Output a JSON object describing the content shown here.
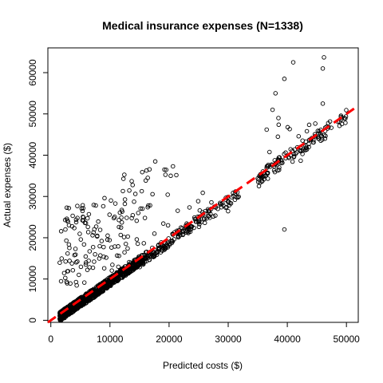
{
  "chart_data": {
    "type": "scatter",
    "title": "Medical insurance expenses (N=1338)",
    "xlabel": "Predicted costs ($)",
    "ylabel": "Actual expenses ($)",
    "xlim": [
      -500,
      52000
    ],
    "ylim": [
      -500,
      66000
    ],
    "xticks": [
      0,
      10000,
      20000,
      30000,
      40000,
      50000
    ],
    "yticks": [
      0,
      10000,
      20000,
      30000,
      40000,
      50000,
      60000
    ],
    "grid": false,
    "legend": "none",
    "reference_line": {
      "type": "dashed",
      "slope": 1,
      "intercept": 0,
      "color": "#ff0000"
    },
    "point_color": "#000000",
    "n_points": 1338,
    "bands": [
      {
        "x_range": [
          1500,
          15000
        ],
        "offset_range": [
          -1800,
          500
        ],
        "count": 820
      },
      {
        "x_range": [
          15000,
          24000
        ],
        "offset_range": [
          -2200,
          500
        ],
        "count": 140
      },
      {
        "x_range": [
          24000,
          32000
        ],
        "offset_range": [
          -2500,
          500
        ],
        "count": 60
      },
      {
        "x_range": [
          35000,
          36500
        ],
        "offset_range": [
          -2500,
          500
        ],
        "count": 20
      },
      {
        "x_range": [
          36500,
          50000
        ],
        "offset_range": [
          -2500,
          1000
        ],
        "count": 110
      }
    ],
    "outlier_groups": [
      {
        "x_range": [
          1500,
          6000
        ],
        "y_range": [
          8000,
          28000
        ],
        "count": 60
      },
      {
        "x_range": [
          6000,
          12000
        ],
        "y_range": [
          12000,
          30000
        ],
        "count": 55
      },
      {
        "x_range": [
          12000,
          16500
        ],
        "y_range": [
          14000,
          37000
        ],
        "count": 40
      },
      {
        "x_range": [
          16500,
          23000
        ],
        "y_range": [
          20000,
          38500
        ],
        "count": 15
      },
      {
        "x_range": [
          23000,
          32000
        ],
        "y_range": [
          24000,
          31000
        ],
        "count": 8
      },
      {
        "x_range": [
          36000,
          48000
        ],
        "y_range": [
          37000,
          48000
        ],
        "count": 15
      }
    ],
    "highlight_points": [
      {
        "x": 37500,
        "y": 51000
      },
      {
        "x": 38000,
        "y": 55000
      },
      {
        "x": 39500,
        "y": 58500
      },
      {
        "x": 41000,
        "y": 62500
      },
      {
        "x": 46200,
        "y": 63700
      },
      {
        "x": 46000,
        "y": 61000
      },
      {
        "x": 46000,
        "y": 52500
      },
      {
        "x": 38500,
        "y": 49000
      },
      {
        "x": 39500,
        "y": 22000
      },
      {
        "x": 24500,
        "y": 24500
      },
      {
        "x": 35200,
        "y": 32500
      }
    ]
  }
}
